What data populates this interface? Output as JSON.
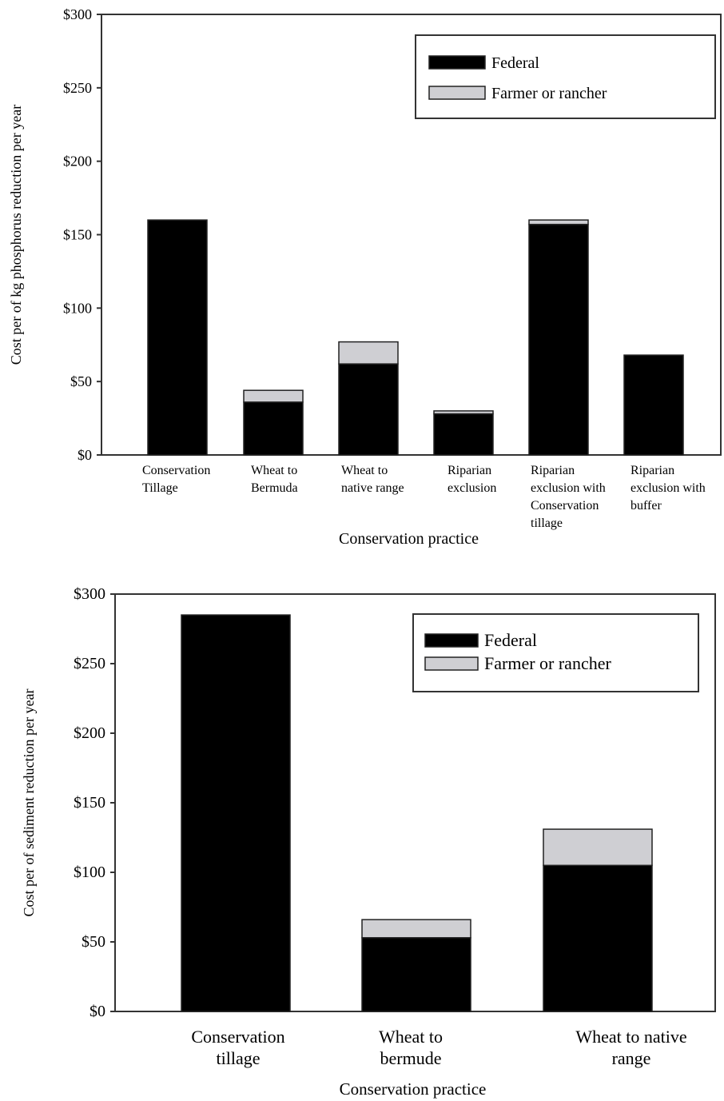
{
  "chart_data": [
    {
      "type": "bar",
      "stacked": true,
      "categories": [
        [
          "Conservation",
          "Tillage"
        ],
        [
          "Wheat to",
          "Bermuda"
        ],
        [
          "Wheat to",
          "native range"
        ],
        [
          "Riparian",
          "exclusion"
        ],
        [
          "Riparian",
          "exclusion with",
          "Conservation",
          "tillage"
        ],
        [
          "Riparian",
          "exclusion with",
          "buffer"
        ]
      ],
      "series": [
        {
          "name": "Federal",
          "values": [
            160,
            36,
            62,
            28,
            157,
            68
          ]
        },
        {
          "name": "Farmer or rancher",
          "values": [
            0,
            8,
            15,
            2,
            3,
            0
          ]
        }
      ],
      "xlabel": "Conservation practice",
      "ylabel": "Cost per of kg phosphorus reduction per year",
      "ylim": [
        0,
        300
      ],
      "yticks": [
        "$0",
        "$50",
        "$100",
        "$150",
        "$200",
        "$250",
        "$300"
      ],
      "legend": "top-right",
      "colors": {
        "Federal": "#000000",
        "Farmer or rancher": "#cfcfd3"
      }
    },
    {
      "type": "bar",
      "stacked": true,
      "categories": [
        [
          "Conservation",
          "tillage"
        ],
        [
          "Wheat to",
          "bermude"
        ],
        [
          "Wheat to native",
          "range"
        ]
      ],
      "series": [
        {
          "name": "Federal",
          "values": [
            285,
            53,
            105
          ]
        },
        {
          "name": "Farmer or rancher",
          "values": [
            0,
            13,
            26
          ]
        }
      ],
      "xlabel": "Conservation practice",
      "ylabel": "Cost per of sediment reduction per year",
      "ylim": [
        0,
        300
      ],
      "yticks": [
        "$0",
        "$50",
        "$100",
        "$150",
        "$200",
        "$250",
        "$300"
      ],
      "legend": "top-right",
      "colors": {
        "Federal": "#000000",
        "Farmer or rancher": "#cfcfd3"
      }
    }
  ]
}
